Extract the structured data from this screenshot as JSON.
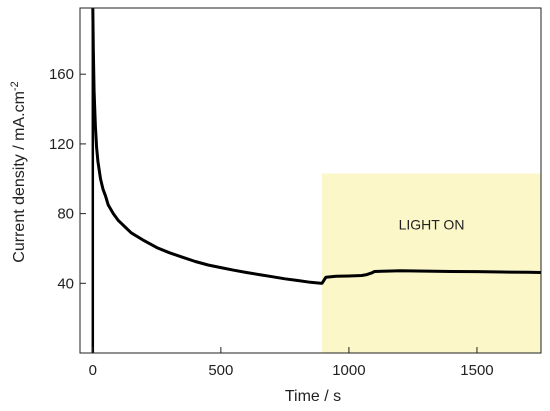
{
  "chart_data": {
    "type": "line",
    "title": "",
    "xlabel": "Time / s",
    "ylabel_main": "Current density / mA.cm",
    "ylabel_sup": "-2",
    "xlim": [
      -50,
      1750
    ],
    "ylim": [
      0,
      198
    ],
    "x_ticks": [
      0,
      500,
      1000,
      1500
    ],
    "x_tick_labels": [
      "0",
      "500",
      "1000",
      "1500"
    ],
    "y_ticks": [
      40,
      80,
      120,
      160
    ],
    "y_tick_labels": [
      "40",
      "80",
      "120",
      "160"
    ],
    "grid": false,
    "legend": "none",
    "shaded_region": {
      "x_start": 895,
      "x_end": 1750,
      "y_top": 103,
      "label": "LIGHT ON",
      "color": "#fbf7c8"
    },
    "series": [
      {
        "color": "#000000",
        "x": [
          0,
          2,
          5,
          10,
          15,
          20,
          30,
          40,
          50,
          60,
          80,
          100,
          150,
          200,
          250,
          300,
          350,
          400,
          450,
          500,
          550,
          600,
          650,
          700,
          750,
          800,
          850,
          890,
          895,
          910,
          950,
          1000,
          1050,
          1070,
          1090,
          1100,
          1150,
          1200,
          1300,
          1400,
          1500,
          1600,
          1700,
          1750
        ],
        "y": [
          198,
          175,
          150,
          130,
          118,
          110,
          100,
          94,
          90,
          85,
          80,
          76,
          69,
          64.5,
          60.5,
          57.5,
          55,
          52.5,
          50.5,
          49,
          47.5,
          46.2,
          45,
          43.8,
          42.6,
          41.6,
          40.6,
          40,
          40,
          43.5,
          44,
          44.2,
          44.5,
          45,
          46,
          46.8,
          47,
          47.2,
          47,
          46.8,
          46.7,
          46.5,
          46.3,
          46.2
        ]
      }
    ]
  }
}
